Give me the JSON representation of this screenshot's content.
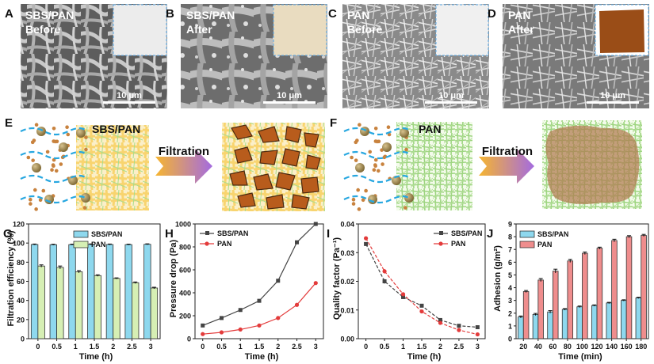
{
  "panels": {
    "A": {
      "letter": "A",
      "line1": "SBS/PAN",
      "line2": "Before",
      "scale": "10 μm"
    },
    "B": {
      "letter": "B",
      "line1": "SBS/PAN",
      "line2": "After",
      "scale": "10 μm"
    },
    "C": {
      "letter": "C",
      "line1": "PAN",
      "line2": "Before",
      "scale": "10 μm"
    },
    "D": {
      "letter": "D",
      "line1": "PAN",
      "line2": "After",
      "scale": "10 μm"
    },
    "E": {
      "letter": "E",
      "title": "SBS/PAN",
      "arrow_label": "Filtration"
    },
    "F": {
      "letter": "F",
      "title": "PAN",
      "arrow_label": "Filtration"
    }
  },
  "colors": {
    "sbs_pan_bar": "#8ed8ee",
    "pan_bar_G": "#d6efb4",
    "pan_bar_J": "#ef8d8d",
    "line_sbs": "#444444",
    "line_pan": "#e33b3b",
    "sbs_fiber": "#f8d679",
    "pan_fiber": "#9ed581"
  },
  "chart_data": [
    {
      "id": "G",
      "letter": "G",
      "type": "bar",
      "xlabel": "Time (h)",
      "ylabel": "Filtration efficiency (%)",
      "categories": [
        "0",
        "0.5",
        "1",
        "1.5",
        "2",
        "2.5",
        "3"
      ],
      "ylim": [
        0,
        120
      ],
      "yticks": [
        "0",
        "20",
        "40",
        "60",
        "80",
        "100",
        "120"
      ],
      "legend": "top-right",
      "series": [
        {
          "name": "SBS/PAN",
          "values": [
            98.5,
            98.3,
            98.4,
            98.6,
            98.5,
            98.4,
            98.7
          ],
          "errors": [
            0.5,
            0.5,
            0.5,
            0.5,
            0.5,
            0.5,
            0.5
          ]
        },
        {
          "name": "PAN",
          "values": [
            76,
            74.5,
            70,
            66,
            63,
            58.5,
            53
          ],
          "errors": [
            1.2,
            1.5,
            1.2,
            0.8,
            0.6,
            0.8,
            0.8
          ]
        }
      ]
    },
    {
      "id": "H",
      "letter": "H",
      "type": "line",
      "xlabel": "Time (h)",
      "ylabel": "Pressure drop (Pa)",
      "x": [
        0,
        0.5,
        1,
        1.5,
        2,
        2.5,
        3
      ],
      "xticks": [
        "0",
        "0.5",
        "1",
        "1.5",
        "2",
        "2.5",
        "3"
      ],
      "ylim": [
        0,
        1000
      ],
      "yticks": [
        "0",
        "200",
        "400",
        "600",
        "800",
        "1000"
      ],
      "legend": "top-left",
      "series": [
        {
          "name": "SBS/PAN",
          "values": [
            115,
            180,
            250,
            330,
            505,
            840,
            1000
          ]
        },
        {
          "name": "PAN",
          "values": [
            40,
            55,
            80,
            115,
            180,
            295,
            485
          ]
        }
      ]
    },
    {
      "id": "I",
      "letter": "I",
      "type": "line",
      "xlabel": "Time (h)",
      "ylabel": "Quality factor (Pa⁻¹)",
      "x": [
        0,
        0.5,
        1,
        1.5,
        2,
        2.5,
        3
      ],
      "xticks": [
        "0",
        "0.5",
        "1",
        "1.5",
        "2",
        "2.5",
        "3"
      ],
      "ylim": [
        0,
        0.04
      ],
      "yticks": [
        "0.00",
        "0.01",
        "0.02",
        "0.03",
        "0.04"
      ],
      "legend": "top-right",
      "series": [
        {
          "name": "SBS/PAN",
          "values": [
            0.033,
            0.02,
            0.0145,
            0.0115,
            0.0065,
            0.0045,
            0.004
          ],
          "errors": [
            0.0005,
            0.0008,
            0.0006,
            0.0006,
            0.0004,
            0.0003,
            0.0003
          ]
        },
        {
          "name": "PAN",
          "values": [
            0.035,
            0.0235,
            0.0155,
            0.0095,
            0.0055,
            0.003,
            0.0015
          ],
          "errors": [
            0.0006,
            0.0008,
            0.0006,
            0.0005,
            0.0004,
            0.0003,
            0.0003
          ]
        }
      ]
    },
    {
      "id": "J",
      "letter": "J",
      "type": "bar",
      "xlabel": "Time (min)",
      "ylabel": "Adhesion (g/m²)",
      "categories": [
        "20",
        "40",
        "60",
        "80",
        "100",
        "120",
        "140",
        "160",
        "180"
      ],
      "ylim": [
        0,
        9
      ],
      "yticks": [
        "0",
        "1",
        "2",
        "3",
        "4",
        "5",
        "6",
        "7",
        "8",
        "9"
      ],
      "legend": "top-left",
      "series": [
        {
          "name": "SBS/PAN",
          "values": [
            1.7,
            1.9,
            2.1,
            2.3,
            2.5,
            2.6,
            2.8,
            3.0,
            3.2
          ],
          "errors": [
            0.08,
            0.08,
            0.1,
            0.06,
            0.06,
            0.05,
            0.05,
            0.05,
            0.05
          ]
        },
        {
          "name": "PAN",
          "values": [
            3.7,
            4.6,
            5.3,
            6.1,
            6.7,
            7.1,
            7.7,
            8.0,
            8.1
          ],
          "errors": [
            0.08,
            0.12,
            0.15,
            0.12,
            0.1,
            0.08,
            0.1,
            0.08,
            0.08
          ]
        }
      ]
    }
  ]
}
